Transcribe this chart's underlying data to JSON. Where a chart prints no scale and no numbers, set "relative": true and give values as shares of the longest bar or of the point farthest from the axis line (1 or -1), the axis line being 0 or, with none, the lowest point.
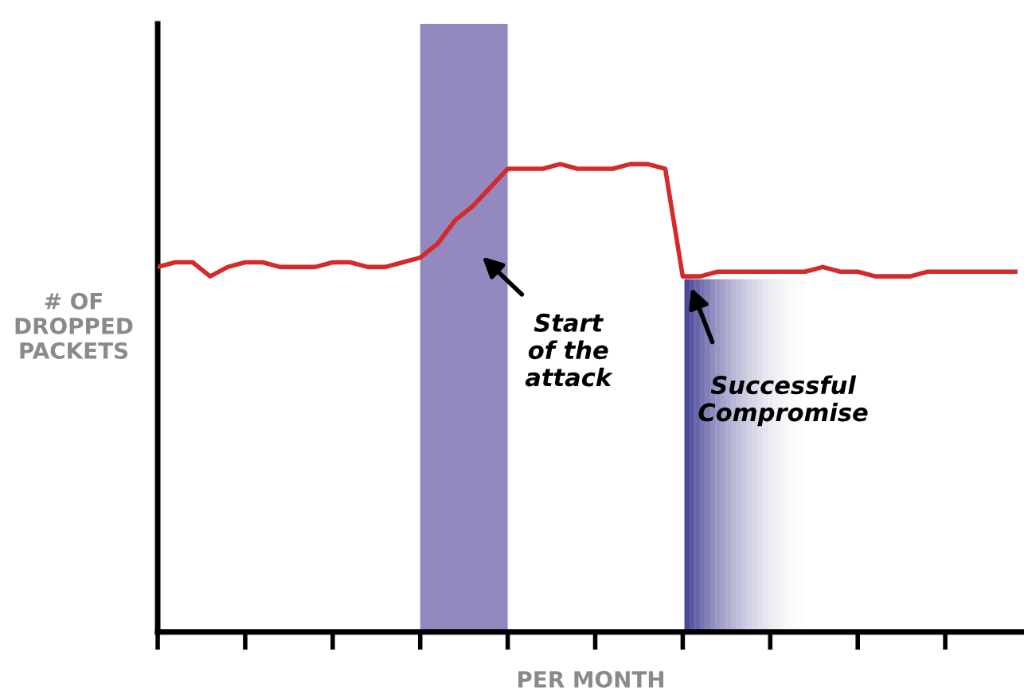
{
  "chart_data": {
    "type": "line",
    "relative": true,
    "xlabel": "PER MONTH",
    "ylabel": "# OF\nDROPPED\nPACKETS",
    "categories": [
      null,
      null,
      null,
      null,
      null,
      null,
      null,
      null,
      null,
      null,
      null,
      null,
      null,
      null,
      null,
      null,
      null,
      null,
      null,
      null,
      null,
      null,
      null,
      null,
      null,
      null,
      null,
      null,
      null,
      null,
      null,
      null,
      null,
      null,
      null,
      null,
      null,
      null,
      null,
      null,
      null,
      null,
      null,
      null,
      null,
      null,
      null,
      null,
      null,
      null
    ],
    "series": [
      {
        "color": "#d42a2a",
        "values": [
          0.78,
          0.79,
          0.79,
          0.76,
          0.78,
          0.79,
          0.79,
          0.78,
          0.78,
          0.78,
          0.79,
          0.79,
          0.78,
          0.78,
          0.79,
          0.8,
          0.83,
          0.88,
          0.91,
          0.95,
          0.99,
          0.99,
          0.99,
          1.0,
          0.99,
          0.99,
          0.99,
          1.0,
          1.0,
          0.99,
          0.76,
          0.76,
          0.77,
          0.77,
          0.77,
          0.77,
          0.77,
          0.77,
          0.78,
          0.77,
          0.77,
          0.76,
          0.76,
          0.76,
          0.77,
          0.77,
          0.77,
          0.77,
          0.77,
          0.77
        ]
      }
    ],
    "annotations": [
      "Start\nof the\nattack",
      "Successful\nCompromise"
    ],
    "grid": false,
    "legend": false,
    "marker": "none",
    "line_style": "solid"
  }
}
